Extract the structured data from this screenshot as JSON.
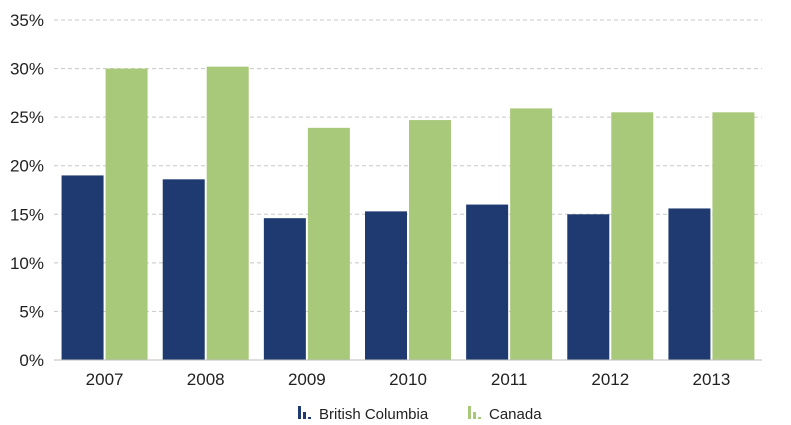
{
  "chart_data": {
    "type": "bar",
    "title": "",
    "xlabel": "",
    "ylabel": "",
    "categories": [
      "2007",
      "2008",
      "2009",
      "2010",
      "2011",
      "2012",
      "2013"
    ],
    "series": [
      {
        "name": "British Columbia",
        "color": "#1f3a70",
        "values": [
          19.0,
          18.6,
          14.6,
          15.3,
          16.0,
          15.0,
          15.6
        ]
      },
      {
        "name": "Canada",
        "color": "#a9c97a",
        "values": [
          30.0,
          30.2,
          23.9,
          24.7,
          25.9,
          25.5,
          25.5
        ]
      }
    ],
    "ylim": [
      0,
      35
    ],
    "yticks": [
      0,
      5,
      10,
      15,
      20,
      25,
      30,
      35
    ],
    "ytick_labels": [
      "0%",
      "5%",
      "10%",
      "15%",
      "20%",
      "25%",
      "30%",
      "35%"
    ],
    "grid": true,
    "grid_style": "dashed",
    "legend_position": "bottom-center",
    "legend_icon": "bar-chart-icon"
  }
}
